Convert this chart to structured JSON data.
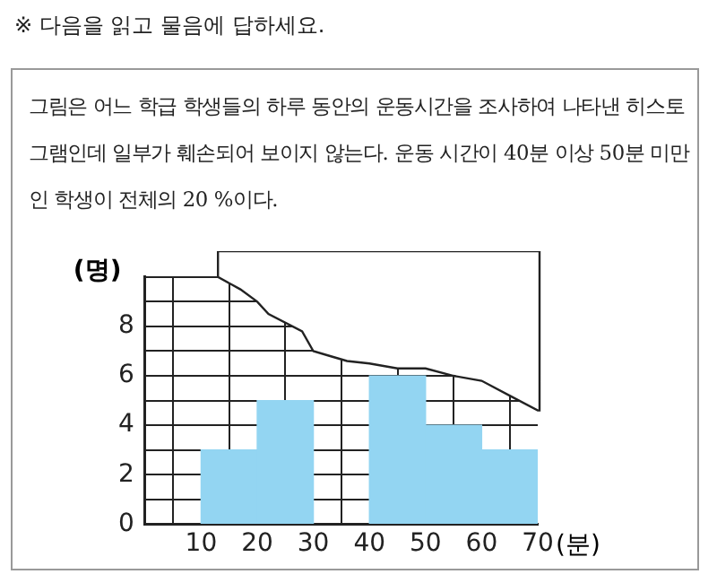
{
  "chart_data": {
    "type": "histogram",
    "title": "※ 다음을 읽고 물음에 답하세요.",
    "subtitle": "그림은 어느 학급 학생들의 하루 동안의 운동시간을 조사하여 나타낸 히스토그램인데 일부가 훼손되어 보이지 않는다. 운동 시간이 40분 이상 50분 미만인 학생이 전체의 20 %이다.",
    "xlabel": "(분)",
    "ylabel": "(명)",
    "bins": [
      10,
      20,
      30,
      40,
      50,
      60,
      70
    ],
    "values": [
      3,
      5,
      null,
      6,
      4,
      3
    ],
    "color": "#93d5f2",
    "xlim": [
      0,
      70
    ],
    "xticks": [
      {
        "value": 0,
        "label": null
      },
      10,
      20,
      30,
      40,
      50,
      60,
      70
    ],
    "ylim": [
      0,
      10
    ],
    "yticks": [
      0,
      {
        "value": 1,
        "label": null
      },
      2,
      {
        "value": 3,
        "label": null
      },
      4,
      {
        "value": 5,
        "label": null
      },
      6,
      {
        "value": 7,
        "label": null
      },
      8,
      {
        "value": 9,
        "label": null
      },
      {
        "value": 10,
        "label": null
      }
    ],
    "grid": true,
    "legend": false
  }
}
